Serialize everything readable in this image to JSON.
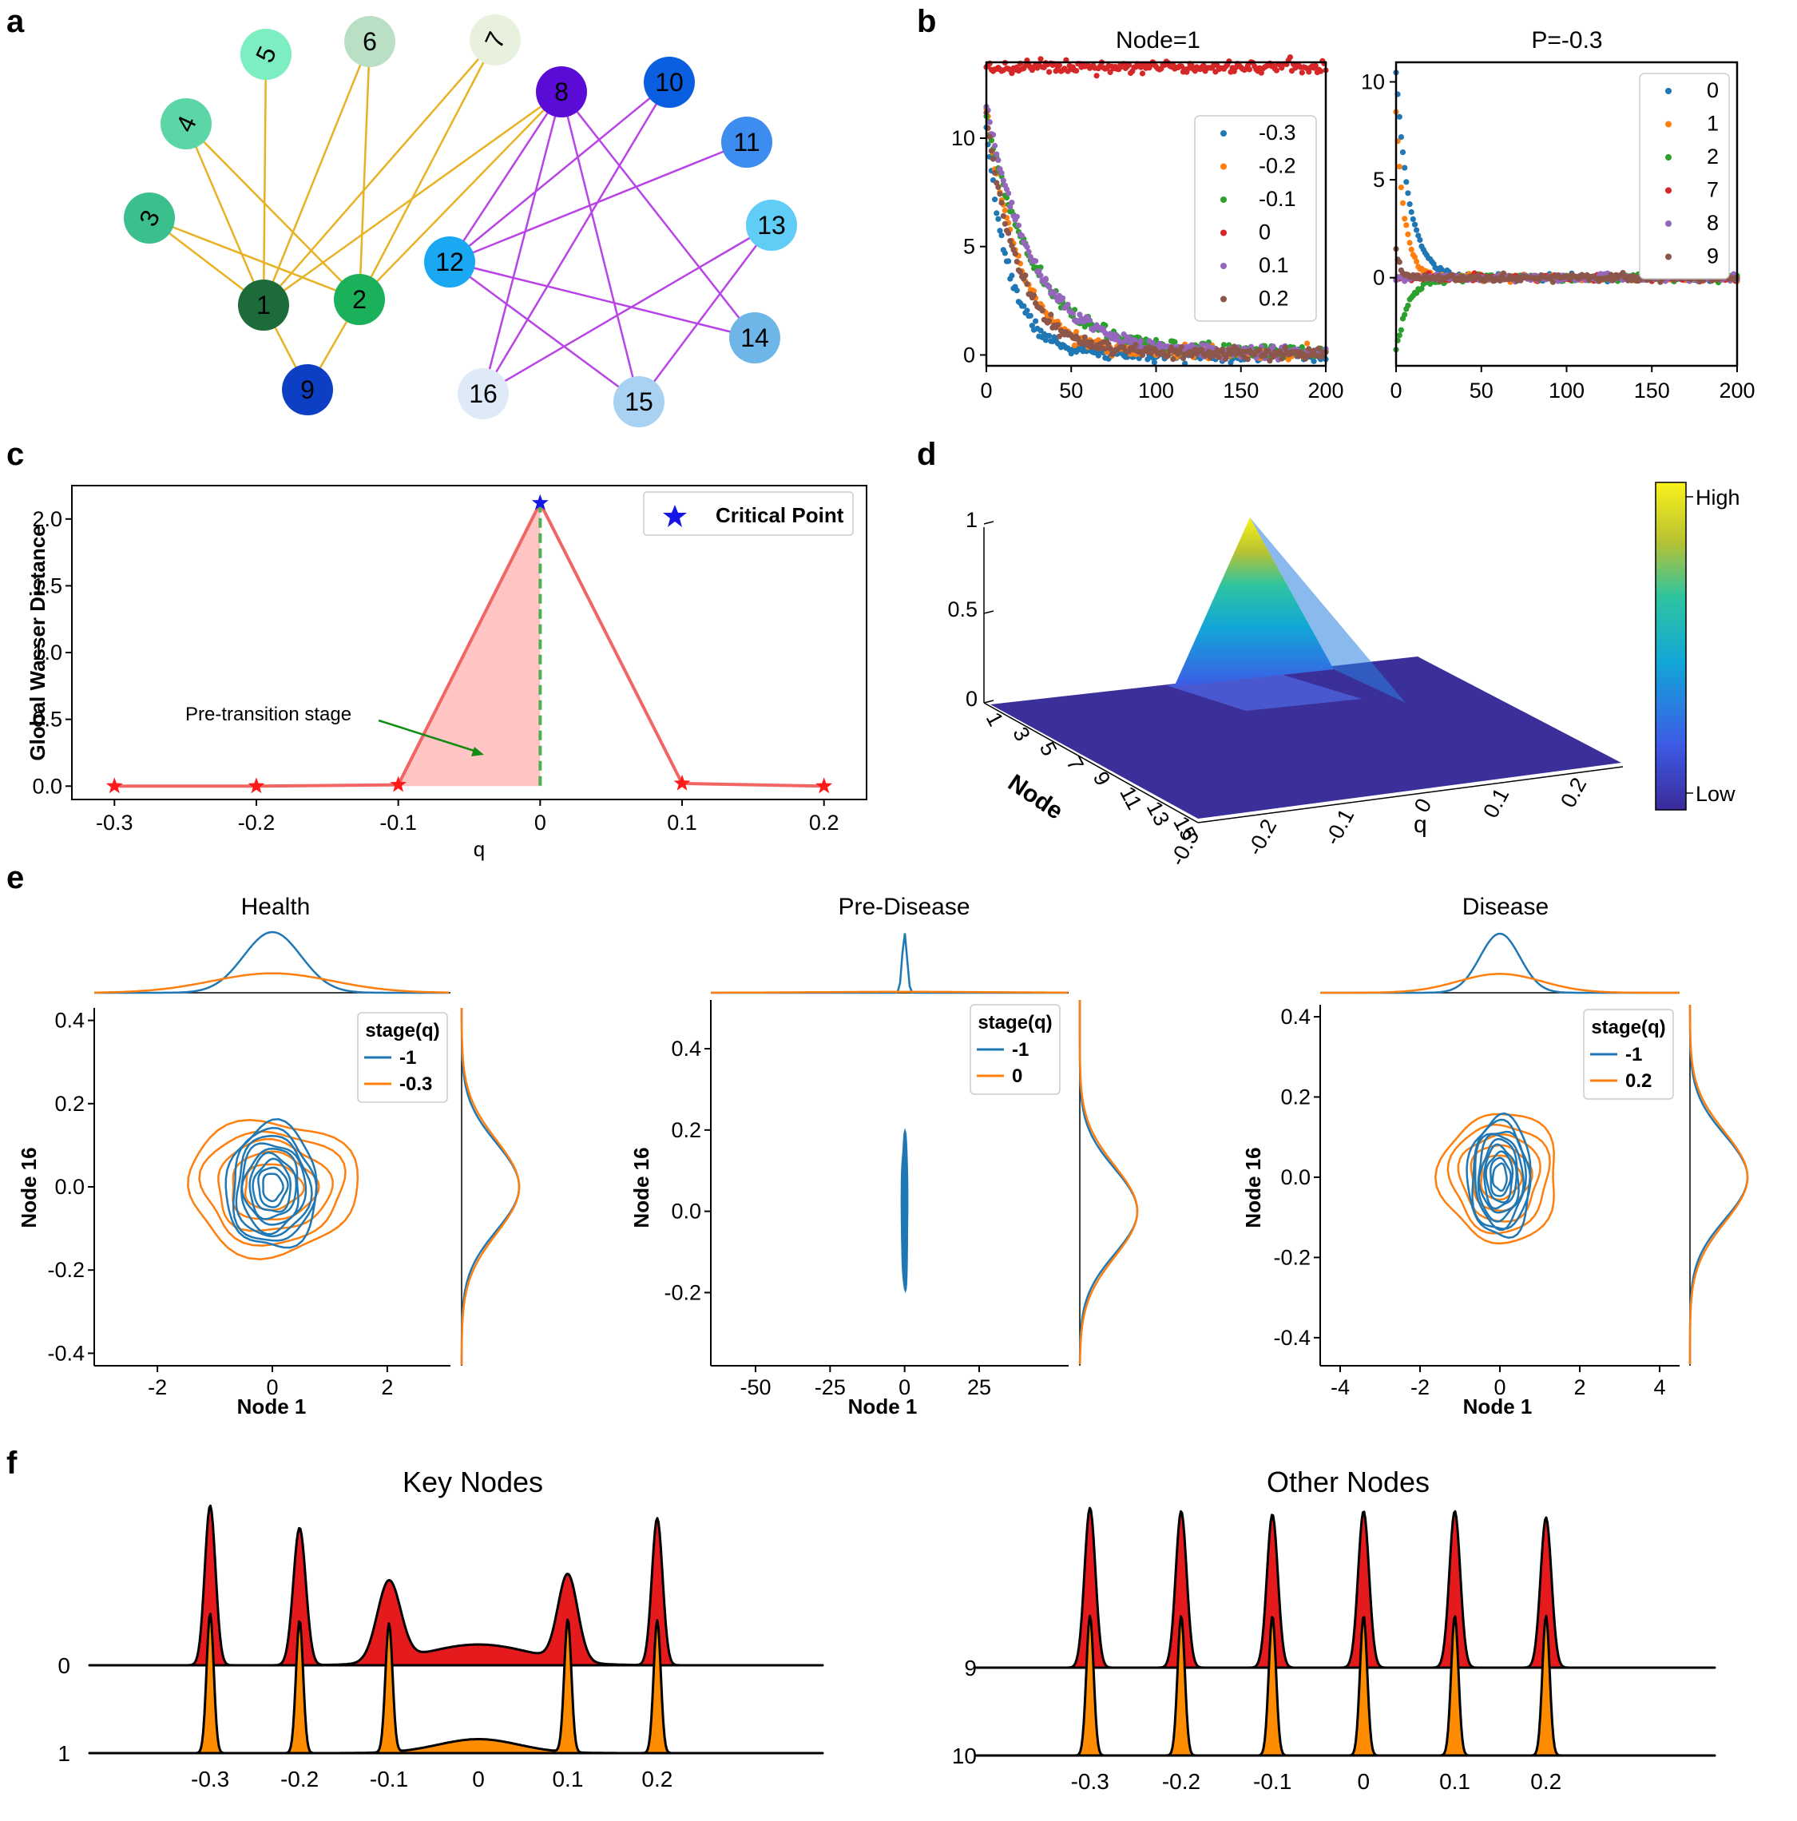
{
  "panel_labels": [
    "a",
    "b",
    "c",
    "d",
    "e",
    "f"
  ],
  "colors": {
    "yellow_edges": "#e8b225",
    "purple_edges": "#b844e6",
    "red": "#d62728",
    "blue": "#1f77b4",
    "orange": "#ff7f0e",
    "green": "#2ca02c",
    "purple": "#9467bd",
    "brown": "#8c564b",
    "area_red": "#e41a1c",
    "area_orange": "#ff8c00"
  },
  "network": {
    "nodes": [
      {
        "id": "1",
        "color": "#1d6b3a"
      },
      {
        "id": "2",
        "color": "#1bb05a"
      },
      {
        "id": "3",
        "color": "#3bbf8c"
      },
      {
        "id": "4",
        "color": "#5cd6a6"
      },
      {
        "id": "5",
        "color": "#7deec1"
      },
      {
        "id": "6",
        "color": "#b9dfc4"
      },
      {
        "id": "7",
        "color": "#e8f1dd"
      },
      {
        "id": "8",
        "color": "#5a0bd6"
      },
      {
        "id": "9",
        "color": "#0d3fc4"
      },
      {
        "id": "10",
        "color": "#0a5fe0"
      },
      {
        "id": "11",
        "color": "#3d8cf0"
      },
      {
        "id": "12",
        "color": "#1aa8f2"
      },
      {
        "id": "13",
        "color": "#5fcdf5"
      },
      {
        "id": "14",
        "color": "#6fb6e8"
      },
      {
        "id": "15",
        "color": "#a9d2f2"
      },
      {
        "id": "16",
        "color": "#dfeaf8"
      }
    ],
    "yellow_edges": [
      [
        "1",
        "3"
      ],
      [
        "1",
        "4"
      ],
      [
        "1",
        "5"
      ],
      [
        "1",
        "6"
      ],
      [
        "1",
        "7"
      ],
      [
        "1",
        "8"
      ],
      [
        "1",
        "9"
      ],
      [
        "2",
        "3"
      ],
      [
        "2",
        "4"
      ],
      [
        "2",
        "6"
      ],
      [
        "2",
        "7"
      ],
      [
        "2",
        "8"
      ],
      [
        "2",
        "9"
      ]
    ],
    "purple_edges": [
      [
        "8",
        "12"
      ],
      [
        "8",
        "16"
      ],
      [
        "8",
        "15"
      ],
      [
        "8",
        "14"
      ],
      [
        "10",
        "12"
      ],
      [
        "10",
        "16"
      ],
      [
        "11",
        "12"
      ],
      [
        "12",
        "14"
      ],
      [
        "12",
        "15"
      ],
      [
        "13",
        "16"
      ],
      [
        "13",
        "15"
      ]
    ]
  },
  "chart_data": [
    {
      "id": "b1",
      "type": "scatter",
      "title": "Node=1",
      "xlim": [
        0,
        200
      ],
      "ylim": [
        -0.5,
        13.5
      ],
      "xticks": [
        "0",
        "50",
        "100",
        "150",
        "200"
      ],
      "yticks": [
        "0",
        "5",
        "10"
      ],
      "legend_position": "right",
      "series": [
        {
          "name": "-0.3",
          "color": "#1f77b4",
          "model": "decay",
          "start": 10.3,
          "tau": 14,
          "end": 0
        },
        {
          "name": "-0.2",
          "color": "#ff7f0e",
          "model": "decay",
          "start": 11.5,
          "tau": 19,
          "end": 0.1
        },
        {
          "name": "-0.1",
          "color": "#2ca02c",
          "model": "decay",
          "start": 11.0,
          "tau": 28,
          "end": 0.15
        },
        {
          "name": "0",
          "color": "#d62728",
          "model": "flat",
          "start": 13.3,
          "tau": 0,
          "end": 13.3
        },
        {
          "name": "0.1",
          "color": "#9467bd",
          "model": "decay",
          "start": 11.5,
          "tau": 28,
          "end": 0.1
        },
        {
          "name": "0.2",
          "color": "#8c564b",
          "model": "decay",
          "start": 11.0,
          "tau": 19,
          "end": 0.05
        }
      ]
    },
    {
      "id": "b2",
      "type": "scatter",
      "title": "P=-0.3",
      "xlim": [
        0,
        200
      ],
      "ylim": [
        -4.5,
        11
      ],
      "xticks": [
        "0",
        "50",
        "100",
        "150",
        "200"
      ],
      "yticks": [
        "0",
        "5",
        "10"
      ],
      "legend_position": "top-right",
      "series": [
        {
          "name": "0",
          "color": "#1f77b4",
          "model": "decay",
          "start": 10.5,
          "tau": 8,
          "end": 0
        },
        {
          "name": "1",
          "color": "#ff7f0e",
          "model": "decay",
          "start": 8.5,
          "tau": 5,
          "end": 0
        },
        {
          "name": "2",
          "color": "#2ca02c",
          "model": "decay",
          "start": -3.8,
          "tau": 7,
          "end": 0
        },
        {
          "name": "7",
          "color": "#d62728",
          "model": "flat",
          "start": 0,
          "tau": 0,
          "end": 0
        },
        {
          "name": "8",
          "color": "#9467bd",
          "model": "flat",
          "start": 0,
          "tau": 0,
          "end": 0
        },
        {
          "name": "9",
          "color": "#8c564b",
          "model": "decay",
          "start": 1.5,
          "tau": 2,
          "end": 0
        }
      ]
    },
    {
      "id": "c",
      "type": "line",
      "xlabel": "q",
      "ylabel": "Global Wasser Distance",
      "x": [
        -0.3,
        -0.2,
        -0.1,
        0,
        0.1,
        0.2
      ],
      "y": [
        0.0,
        0.0,
        0.01,
        2.12,
        0.02,
        0.0
      ],
      "xlim": [
        -0.33,
        0.23
      ],
      "ylim": [
        -0.1,
        2.25
      ],
      "xticks": [
        "-0.3",
        "-0.2",
        "-0.1",
        "0",
        "0.1",
        "0.2"
      ],
      "yticks": [
        "0.0",
        "0.5",
        "1.0",
        "1.5",
        "2.0"
      ],
      "legend": "Critical Point",
      "critical_q": 0,
      "annotation": "Pre-transition stage"
    },
    {
      "id": "d",
      "type": "surface",
      "xlabel": "q",
      "ylabel": "Node",
      "q_ticks": [
        "-0.3",
        "-0.2",
        "-0.1",
        "0",
        "0.1",
        "0.2"
      ],
      "node_ticks": [
        "1",
        "3",
        "5",
        "7",
        "9",
        "11",
        "13",
        "15"
      ],
      "z_ticks": [
        "0",
        "0.5",
        "1"
      ],
      "colorbar": {
        "high": "High",
        "low": "Low"
      },
      "peak": {
        "q": 0,
        "node": 1,
        "z": 1
      }
    },
    {
      "id": "e1",
      "type": "contour",
      "title": "Health",
      "xlabel": "Node 1",
      "ylabel": "Node 16",
      "xlim": [
        -3.1,
        3.1
      ],
      "ylim": [
        -0.43,
        0.43
      ],
      "xticks": [
        "-2",
        "0",
        "2"
      ],
      "yticks": [
        "0.4",
        "0.2",
        "0.0",
        "-0.2",
        "-0.4"
      ],
      "legend_title": "stage(q)",
      "series": [
        {
          "name": "-1",
          "color": "#1f77b4",
          "sx": 0.5,
          "sy": 0.095
        },
        {
          "name": "-0.3",
          "color": "#ff7f0e",
          "sx": 1.05,
          "sy": 0.115
        }
      ]
    },
    {
      "id": "e2",
      "type": "contour",
      "title": "Pre-Disease",
      "xlabel": "Node 1",
      "ylabel": "Node 16",
      "xlim": [
        -65,
        55
      ],
      "ylim": [
        -0.38,
        0.52
      ],
      "xticks": [
        "-50",
        "-25",
        "0",
        "25"
      ],
      "yticks": [
        "0.4",
        "0.2",
        "0.0",
        "-0.2"
      ],
      "legend_title": "stage(q)",
      "series": [
        {
          "name": "-1",
          "color": "#1f77b4",
          "sx": 0.6,
          "sy": 0.12
        },
        {
          "name": "0",
          "color": "#ff7f0e",
          "sx": 30,
          "sy": 0.12
        }
      ]
    },
    {
      "id": "e3",
      "type": "contour",
      "title": "Disease",
      "xlabel": "Node 1",
      "ylabel": "Node 16",
      "xlim": [
        -4.5,
        4.5
      ],
      "ylim": [
        -0.47,
        0.43
      ],
      "xticks": [
        "-4",
        "-2",
        "0",
        "2",
        "4"
      ],
      "yticks": [
        "0.4",
        "0.2",
        "0.0",
        "-0.2",
        "-0.4"
      ],
      "legend_title": "stage(q)",
      "series": [
        {
          "name": "-1",
          "color": "#1f77b4",
          "sx": 0.5,
          "sy": 0.095
        },
        {
          "name": "0.2",
          "color": "#ff7f0e",
          "sx": 1.05,
          "sy": 0.115
        }
      ]
    },
    {
      "id": "f1",
      "type": "ridgeline",
      "title": "Key Nodes",
      "x": [
        "-0.3",
        "-0.2",
        "-0.1",
        "0",
        "0.1",
        "0.2"
      ],
      "rows": [
        {
          "name": "0",
          "color": "#e41a1c",
          "peaks": [
            1.0,
            0.86,
            0.5,
            0.13,
            0.54,
            0.92
          ],
          "widths": [
            0.006,
            0.007,
            0.013,
            0.06,
            0.011,
            0.006
          ]
        },
        {
          "name": "1",
          "color": "#ff8c00",
          "peaks": [
            1.0,
            0.95,
            0.92,
            0.1,
            0.95,
            0.95
          ],
          "widths": [
            0.004,
            0.004,
            0.004,
            0.045,
            0.004,
            0.004
          ]
        }
      ]
    },
    {
      "id": "f2",
      "type": "ridgeline",
      "title": "Other Nodes",
      "x": [
        "-0.3",
        "-0.2",
        "-0.1",
        "0",
        "0.1",
        "0.2"
      ],
      "rows": [
        {
          "name": "9",
          "color": "#e41a1c",
          "peaks": [
            1.0,
            0.98,
            0.96,
            0.98,
            0.98,
            0.94
          ],
          "widths": [
            0.006,
            0.006,
            0.006,
            0.006,
            0.006,
            0.006
          ]
        },
        {
          "name": "10",
          "color": "#ff8c00",
          "peaks": [
            1.0,
            1.0,
            1.0,
            1.0,
            1.0,
            1.0
          ],
          "widths": [
            0.004,
            0.004,
            0.004,
            0.004,
            0.004,
            0.004
          ]
        }
      ]
    }
  ]
}
